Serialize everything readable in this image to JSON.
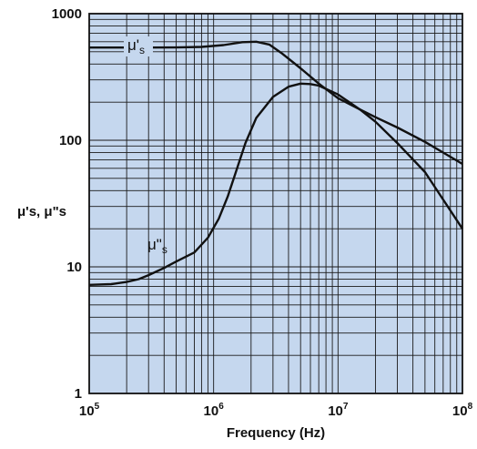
{
  "chart_data": {
    "type": "line",
    "xlabel": "Frequency (Hz)",
    "ylabel": "μ's, μ\"s",
    "x_scale": "log",
    "y_scale": "log",
    "xlim": [
      100000,
      100000000
    ],
    "ylim": [
      1,
      1000
    ],
    "grid": true,
    "background_color": "#c5d7ee",
    "line_color": "#111111",
    "x_ticks": [
      {
        "base": "10",
        "exp": "5"
      },
      {
        "base": "10",
        "exp": "6"
      },
      {
        "base": "10",
        "exp": "7"
      },
      {
        "base": "10",
        "exp": "8"
      }
    ],
    "y_ticks": [
      "1000",
      "100",
      "10",
      "1"
    ],
    "series": [
      {
        "name": "μ's",
        "label_main": "μ'",
        "label_sub": "s",
        "points": [
          [
            100000,
            540
          ],
          [
            300000,
            540
          ],
          [
            500000,
            541
          ],
          [
            800000,
            546
          ],
          [
            1200000,
            565
          ],
          [
            1700000,
            595
          ],
          [
            2200000,
            600
          ],
          [
            2800000,
            570
          ],
          [
            3500000,
            490
          ],
          [
            5000000,
            370
          ],
          [
            7000000,
            280
          ],
          [
            10000000,
            215
          ],
          [
            15000000,
            175
          ],
          [
            20000000,
            152
          ],
          [
            30000000,
            126
          ],
          [
            50000000,
            97
          ],
          [
            70000000,
            80
          ],
          [
            100000000,
            65
          ]
        ]
      },
      {
        "name": "μ\"s",
        "label_main": "μ\"",
        "label_sub": "s",
        "points": [
          [
            100000,
            7.2
          ],
          [
            150000,
            7.3
          ],
          [
            200000,
            7.6
          ],
          [
            250000,
            8.0
          ],
          [
            300000,
            8.6
          ],
          [
            400000,
            9.8
          ],
          [
            500000,
            11
          ],
          [
            700000,
            13
          ],
          [
            900000,
            17
          ],
          [
            1100000,
            24
          ],
          [
            1300000,
            36
          ],
          [
            1500000,
            55
          ],
          [
            1800000,
            95
          ],
          [
            2200000,
            150
          ],
          [
            3000000,
            220
          ],
          [
            4000000,
            265
          ],
          [
            5000000,
            280
          ],
          [
            6000000,
            278
          ],
          [
            7000000,
            270
          ],
          [
            10000000,
            230
          ],
          [
            15000000,
            175
          ],
          [
            20000000,
            140
          ],
          [
            30000000,
            95
          ],
          [
            50000000,
            56
          ],
          [
            70000000,
            34
          ],
          [
            100000000,
            20
          ]
        ]
      }
    ]
  }
}
